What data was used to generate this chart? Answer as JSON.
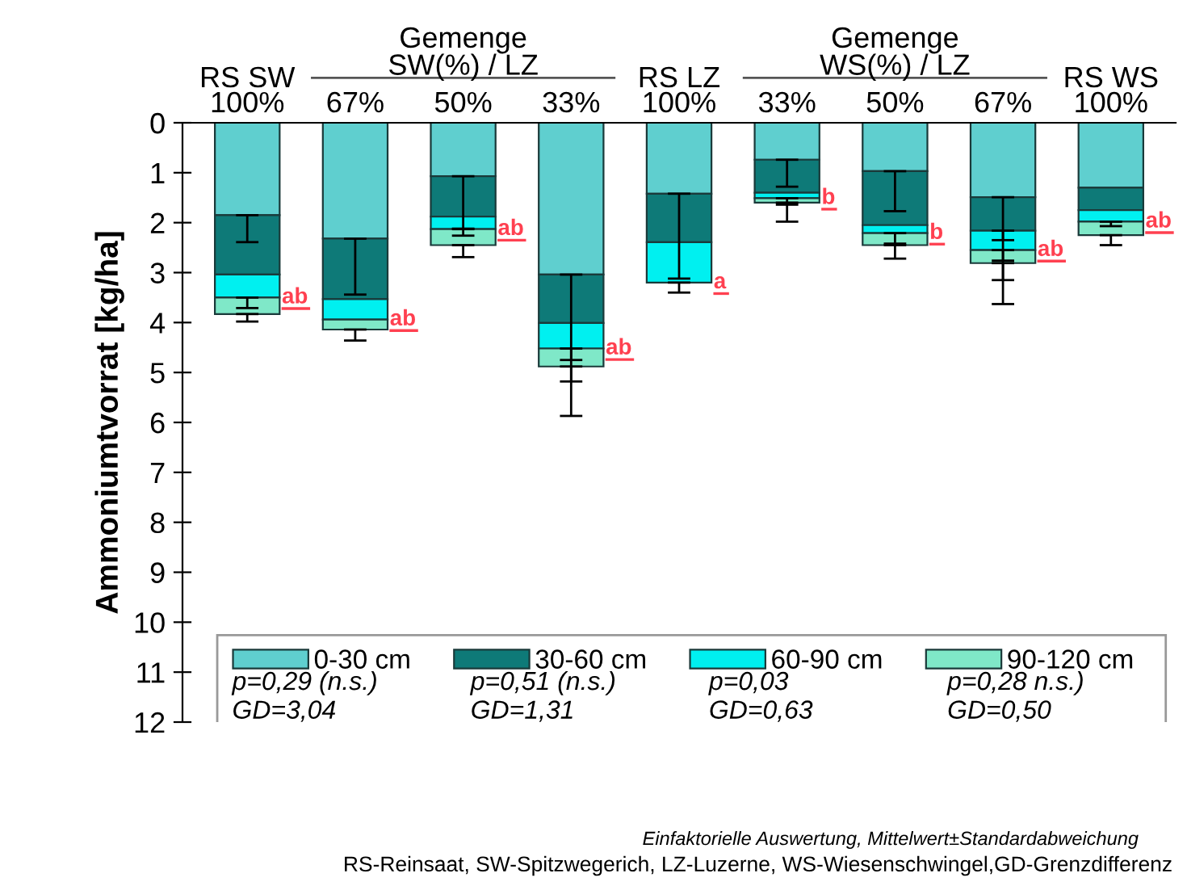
{
  "chart_data": {
    "type": "bar",
    "stacked": true,
    "ylabel": "Ammoniumtvorrat [kg/ha]",
    "categories": [
      "RS SW\n100%",
      "67%",
      "50%",
      "33%",
      "RS LZ\n100%",
      "33%",
      "50%",
      "67%",
      "RS WS\n100%"
    ],
    "ylim": [
      12,
      0
    ],
    "yticks": [
      0,
      1,
      2,
      3,
      4,
      5,
      6,
      7,
      8,
      9,
      10,
      11,
      12
    ],
    "grid": false,
    "legend": "bottom",
    "series": [
      {
        "name": "0-30 cm",
        "color": "#5fcfcf",
        "values": [
          1.85,
          2.32,
          1.07,
          3.04,
          1.42,
          0.74,
          0.97,
          1.49,
          1.3
        ],
        "errors": [
          [
            1.85,
            2.39
          ],
          [
            2.32,
            3.44
          ],
          [
            1.07,
            2.12
          ],
          [
            3.04,
            4.75
          ],
          [
            1.42,
            3.12
          ],
          [
            0.74,
            1.28
          ],
          [
            0.97,
            1.77
          ],
          [
            1.49,
            2.35
          ],
          null
        ]
      },
      {
        "name": "30-60 cm",
        "color": "#0e7a78",
        "values": [
          1.19,
          1.21,
          0.81,
          0.97,
          0.97,
          0.66,
          1.08,
          0.67,
          0.45
        ],
        "errors": [
          null,
          null,
          null,
          null,
          null,
          null,
          null,
          [
            2.16,
            2.76
          ],
          null
        ]
      },
      {
        "name": "60-90 cm",
        "color": "#00f0f0",
        "values": [
          0.46,
          0.41,
          0.25,
          0.51,
          0.81,
          0.11,
          0.16,
          0.39,
          0.23
        ],
        "errors": [
          [
            3.5,
            3.71
          ],
          null,
          [
            2.13,
            2.26
          ],
          [
            4.52,
            5.18
          ],
          [
            3.2,
            3.4
          ],
          [
            1.51,
            1.64
          ],
          [
            2.21,
            2.42
          ],
          [
            2.55,
            3.15
          ],
          [
            1.98,
            2.07
          ]
        ],
        "value_labels": [
          "ab",
          "ab",
          "ab",
          "ab",
          "a",
          "b",
          "b",
          "ab",
          "ab"
        ]
      },
      {
        "name": "90-120 cm",
        "color": "#7fe8c8",
        "values": [
          0.33,
          0.2,
          0.32,
          0.36,
          null,
          0.09,
          0.24,
          0.26,
          0.27
        ],
        "errors": [
          [
            3.83,
            3.98
          ],
          [
            4.14,
            4.36
          ],
          [
            2.45,
            2.69
          ],
          [
            4.88,
            5.87
          ],
          null,
          [
            1.6,
            1.98
          ],
          [
            2.45,
            2.72
          ],
          [
            2.81,
            3.63
          ],
          [
            2.25,
            2.45
          ]
        ]
      }
    ],
    "annotations": [
      "Gemenge\nSW(%) / LZ",
      "Gemenge\nWS(%) / LZ",
      "p=0,29 (n.s.)\nGD=3,04",
      "p=0,51 (n.s.)\nGD=1,31",
      "p=0,03\nGD=0,63",
      "p=0,28 n.s.)\nGD=0,50",
      "Einfaktorielle Auswertung, Mittelwert±Standardabweichung",
      "RS-Reinsaat, SW-Spitzwegerich, LZ-Luzerne, WS-Wiesenschwingel,GD-Grenzdifferenz"
    ]
  }
}
